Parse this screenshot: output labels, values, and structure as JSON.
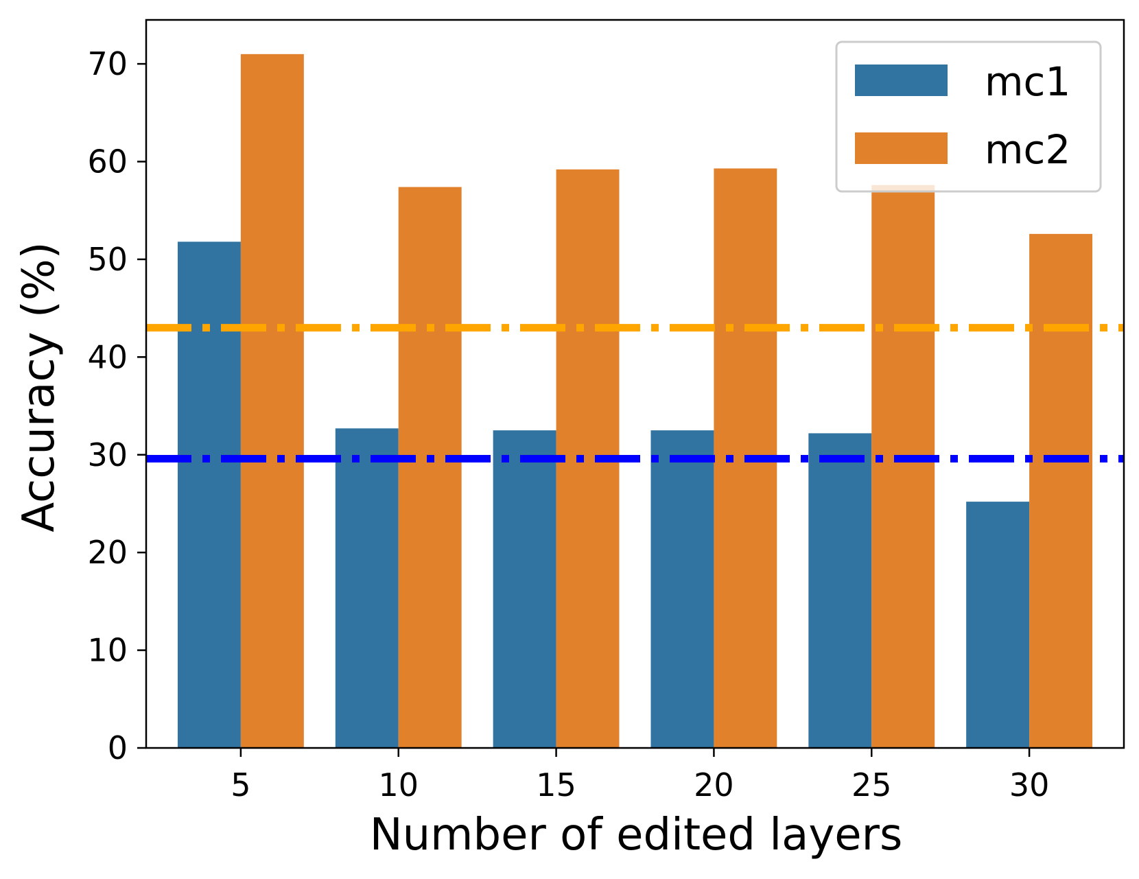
{
  "chart_data": {
    "type": "bar",
    "xlabel": "Number of edited layers",
    "ylabel": "Accuracy (%)",
    "categories": [
      "5",
      "10",
      "15",
      "20",
      "25",
      "30"
    ],
    "series": [
      {
        "name": "mc1",
        "color": "#3274a1",
        "values": [
          51.8,
          32.7,
          32.5,
          32.5,
          32.2,
          25.2
        ]
      },
      {
        "name": "mc2",
        "color": "#e1812c",
        "values": [
          71.0,
          57.4,
          59.2,
          59.3,
          57.6,
          52.6
        ]
      }
    ],
    "reference_lines": [
      {
        "value": 43.0,
        "color": "#ffa500",
        "style": "dash-dot"
      },
      {
        "value": 29.6,
        "color": "#0000ff",
        "style": "dash-dot"
      }
    ],
    "ylim": [
      0,
      74.5
    ],
    "yticks": [
      0,
      10,
      20,
      30,
      40,
      50,
      60,
      70
    ],
    "grid": false,
    "legend_position": "top-right"
  }
}
